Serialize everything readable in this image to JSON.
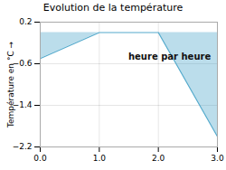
{
  "chart_data": {
    "type": "area",
    "title": "Evolution de la température",
    "ylabel": "Température en °C",
    "annotations": [
      {
        "text": "heure par heure"
      }
    ],
    "x": [
      0,
      1,
      2,
      3
    ],
    "values": [
      -0.5,
      0.0,
      0.0,
      -2.0
    ],
    "color": "#55aacc",
    "xlim": [
      0,
      3
    ],
    "ylim": [
      -2.2,
      0.2
    ],
    "xticks": [
      0,
      1,
      2,
      3
    ],
    "yticks": [
      0.2,
      -0.6,
      -1.4,
      -2.2
    ],
    "grid": true
  }
}
